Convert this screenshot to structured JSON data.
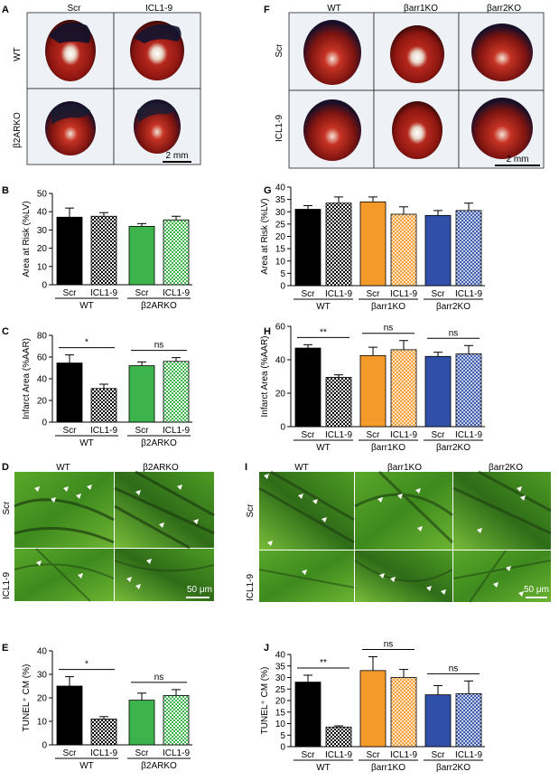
{
  "figure": {
    "panel_labels": [
      "A",
      "B",
      "C",
      "D",
      "E",
      "F",
      "G",
      "H",
      "I",
      "J"
    ],
    "scale_mm": "2 mm",
    "scale_um": "50 μm",
    "left_groups": [
      "WT",
      "β2ARKO"
    ],
    "right_groups": [
      "WT",
      "βarr1KO",
      "βarr2KO"
    ],
    "treatments": [
      "Scr",
      "ICL1-9"
    ],
    "row_labels_left": [
      "WT",
      "β2ARKO"
    ],
    "row_labels_right": [
      "Scr",
      "ICL1-9"
    ],
    "ylabel_aar": "Area at Risk (%LV)",
    "ylabel_infarct": "Infarct Area (%AAR)",
    "ylabel_tunel": "TUNEL⁺ CM (%)"
  },
  "colors": {
    "black": "#000000",
    "green": "#3cb44b",
    "green_check": "#3cb44b",
    "orange": "#f39a2b",
    "blue": "#2f4fa8",
    "heart_red": "#a01c16",
    "tissue_green": "#4c9a22"
  },
  "chart_data": [
    {
      "id": "B",
      "type": "bar",
      "ylabel": "Area at Risk (%LV)",
      "ylim": [
        0,
        50
      ],
      "yticks": [
        0,
        10,
        20,
        30,
        40,
        50
      ],
      "categories": [
        "Scr",
        "ICL1-9",
        "Scr",
        "ICL1-9"
      ],
      "groups": [
        "WT",
        "β2ARKO"
      ],
      "values": [
        37,
        37.5,
        32,
        35.5
      ],
      "errors": [
        5,
        2,
        1.5,
        2
      ],
      "significance": []
    },
    {
      "id": "C",
      "type": "bar",
      "ylabel": "Infarct Area (%AAR)",
      "ylim": [
        0,
        80
      ],
      "yticks": [
        0,
        20,
        40,
        60,
        80
      ],
      "categories": [
        "Scr",
        "ICL1-9",
        "Scr",
        "ICL1-9"
      ],
      "groups": [
        "WT",
        "β2ARKO"
      ],
      "values": [
        54.5,
        31,
        52,
        56
      ],
      "errors": [
        7.5,
        4,
        3.5,
        3.5
      ],
      "significance": [
        {
          "text": "*",
          "pair": [
            0,
            1
          ]
        },
        {
          "text": "ns",
          "pair": [
            2,
            3
          ]
        }
      ]
    },
    {
      "id": "E",
      "type": "bar",
      "ylabel": "TUNEL⁺ CM (%)",
      "ylim": [
        0,
        40
      ],
      "yticks": [
        0,
        10,
        20,
        30,
        40
      ],
      "categories": [
        "Scr",
        "ICL1-9",
        "Scr",
        "ICL1-9"
      ],
      "groups": [
        "WT",
        "β2ARKO"
      ],
      "values": [
        25,
        11,
        19,
        21
      ],
      "errors": [
        4,
        1,
        3,
        2.5
      ],
      "significance": [
        {
          "text": "*",
          "pair": [
            0,
            1
          ]
        },
        {
          "text": "ns",
          "pair": [
            2,
            3
          ]
        }
      ]
    },
    {
      "id": "G",
      "type": "bar",
      "ylabel": "Area at Risk (%LV)",
      "ylim": [
        0,
        40
      ],
      "yticks": [
        0,
        5,
        10,
        15,
        20,
        25,
        30,
        35,
        40
      ],
      "categories": [
        "Scr",
        "ICL1-9",
        "Scr",
        "ICL1-9",
        "Scr",
        "ICL1-9"
      ],
      "groups": [
        "WT",
        "βarr1KO",
        "βarr2KO"
      ],
      "values": [
        31,
        33.5,
        34,
        29,
        28.5,
        30.5
      ],
      "errors": [
        1.5,
        2.5,
        2,
        3,
        2,
        3
      ],
      "significance": []
    },
    {
      "id": "H",
      "type": "bar",
      "ylabel": "Infarct Area (%AAR)",
      "ylim": [
        0,
        60
      ],
      "yticks": [
        0,
        20,
        40,
        60
      ],
      "categories": [
        "Scr",
        "ICL1-9",
        "Scr",
        "ICL1-9",
        "Scr",
        "ICL1-9"
      ],
      "groups": [
        "WT",
        "βarr1KO",
        "βarr2KO"
      ],
      "values": [
        47,
        29.5,
        42.5,
        46,
        42,
        43.5
      ],
      "errors": [
        2,
        1.5,
        5,
        5.5,
        2.5,
        5
      ],
      "significance": [
        {
          "text": "**",
          "pair": [
            0,
            1
          ]
        },
        {
          "text": "ns",
          "pair": [
            2,
            3
          ]
        },
        {
          "text": "ns",
          "pair": [
            4,
            5
          ]
        }
      ]
    },
    {
      "id": "J",
      "type": "bar",
      "ylabel": "TUNEL⁺ CM (%)",
      "ylim": [
        0,
        40
      ],
      "yticks": [
        0,
        5,
        10,
        15,
        20,
        25,
        30,
        35,
        40
      ],
      "categories": [
        "Scr",
        "ICL1-9",
        "Scr",
        "ICL1-9",
        "Scr",
        "ICL1-9"
      ],
      "groups": [
        "WT",
        "βarr1KO",
        "βarr2KO"
      ],
      "values": [
        28,
        8.5,
        33,
        30,
        22.5,
        23
      ],
      "errors": [
        3,
        0.5,
        6,
        3.5,
        4,
        5.5
      ],
      "significance": [
        {
          "text": "**",
          "pair": [
            0,
            1
          ]
        },
        {
          "text": "ns",
          "pair": [
            2,
            3
          ]
        },
        {
          "text": "ns",
          "pair": [
            4,
            5
          ]
        }
      ]
    }
  ]
}
